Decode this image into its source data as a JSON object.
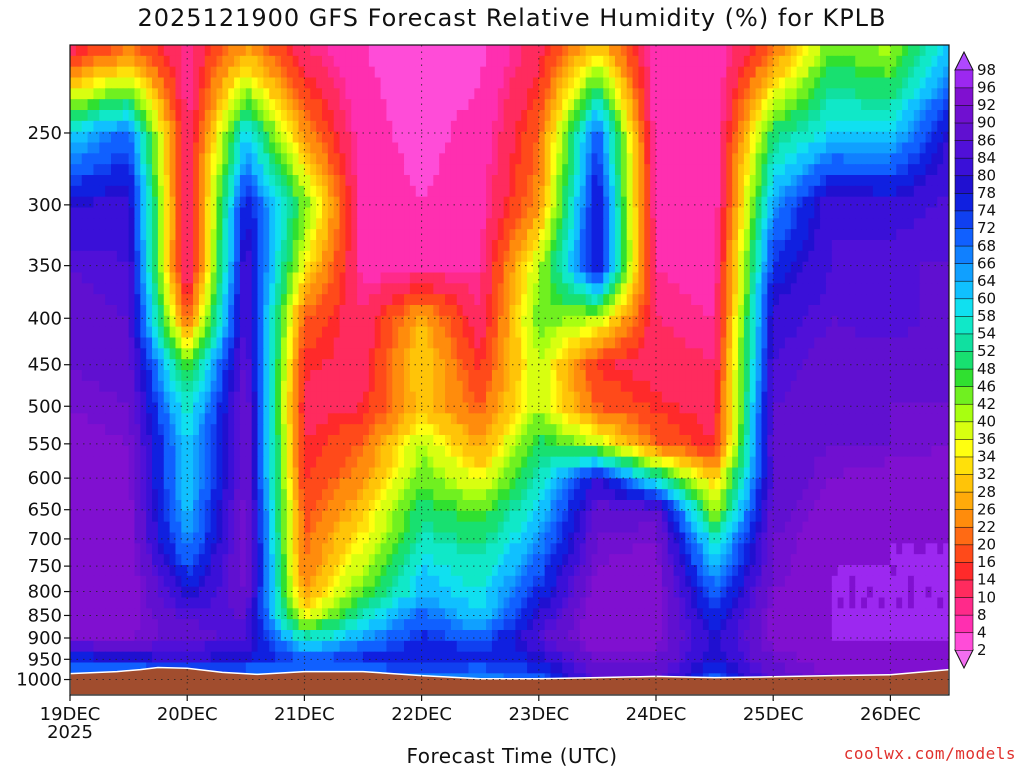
{
  "chart_data": {
    "type": "heatmap",
    "title": "2025121900 GFS Forecast Relative Humidity (%) for KPLB",
    "xlabel": "Forecast Time (UTC)",
    "ylabel": "",
    "x_ticks": [
      "19DEC",
      "20DEC",
      "21DEC",
      "22DEC",
      "23DEC",
      "24DEC",
      "25DEC",
      "26DEC"
    ],
    "x_year_label": "2025",
    "x_range_days": [
      0,
      7.5
    ],
    "y_ticks": [
      250,
      300,
      350,
      400,
      450,
      500,
      550,
      600,
      650,
      700,
      750,
      800,
      850,
      900,
      950,
      1000
    ],
    "y_range_hpa": [
      200,
      1040
    ],
    "y_scale": "log",
    "grid": true,
    "colorbar": {
      "position": "right",
      "labels": [
        2,
        4,
        8,
        10,
        14,
        16,
        20,
        22,
        26,
        28,
        32,
        34,
        36,
        40,
        42,
        46,
        48,
        52,
        54,
        58,
        60,
        64,
        66,
        68,
        72,
        74,
        78,
        80,
        84,
        86,
        90,
        92,
        96,
        98
      ],
      "colors": [
        "#f26ef0",
        "#ff4cd8",
        "#ff2fb0",
        "#ff2a8a",
        "#ff2b5e",
        "#ff2a2a",
        "#ff4a1a",
        "#ff6a14",
        "#ff8c0c",
        "#ffaa0a",
        "#ffc408",
        "#ffe00a",
        "#ffff10",
        "#d8ff10",
        "#a8ff10",
        "#70f020",
        "#30e030",
        "#18e070",
        "#10e0a0",
        "#10e8c8",
        "#10e0f0",
        "#10c0ff",
        "#10a0ff",
        "#1080ff",
        "#1060ff",
        "#1040f0",
        "#1020e0",
        "#2010d0",
        "#3a10d8",
        "#5010d8",
        "#6010d0",
        "#7010d0",
        "#8010d0",
        "#9c28f0",
        "#b048ff"
      ]
    },
    "terrain_pressure_hpa": [
      [
        0,
        985
      ],
      [
        0.4,
        980
      ],
      [
        0.6,
        975
      ],
      [
        0.75,
        970
      ],
      [
        1.0,
        972
      ],
      [
        1.3,
        982
      ],
      [
        1.6,
        987
      ],
      [
        2.0,
        980
      ],
      [
        2.5,
        980
      ],
      [
        3.0,
        990
      ],
      [
        3.5,
        998
      ],
      [
        4.0,
        998
      ],
      [
        4.5,
        995
      ],
      [
        5.0,
        992
      ],
      [
        5.5,
        995
      ],
      [
        6.0,
        993
      ],
      [
        6.5,
        990
      ],
      [
        7.0,
        988
      ],
      [
        7.5,
        975
      ]
    ],
    "humidity_grid": {
      "x_days": [
        0,
        0.5,
        1.0,
        1.5,
        2.0,
        2.5,
        3.0,
        3.5,
        4.0,
        4.5,
        5.0,
        5.5,
        6.0,
        6.5,
        7.0,
        7.5
      ],
      "p_levels": [
        200,
        250,
        300,
        350,
        400,
        450,
        500,
        550,
        600,
        650,
        700,
        750,
        800,
        850,
        900,
        950,
        1000
      ],
      "values": [
        [
          10,
          20,
          8,
          25,
          10,
          4,
          3,
          3,
          12,
          30,
          5,
          4,
          20,
          45,
          40,
          60
        ],
        [
          60,
          70,
          8,
          60,
          25,
          5,
          3,
          5,
          20,
          72,
          5,
          4,
          50,
          60,
          60,
          80
        ],
        [
          80,
          82,
          8,
          78,
          45,
          6,
          4,
          6,
          25,
          80,
          6,
          5,
          65,
          84,
          82,
          85
        ],
        [
          86,
          84,
          6,
          84,
          35,
          6,
          6,
          8,
          40,
          80,
          8,
          6,
          75,
          84,
          86,
          86
        ],
        [
          88,
          86,
          20,
          86,
          20,
          10,
          28,
          10,
          45,
          40,
          10,
          8,
          82,
          86,
          84,
          88
        ],
        [
          90,
          88,
          45,
          88,
          15,
          12,
          32,
          15,
          40,
          15,
          12,
          10,
          84,
          88,
          88,
          90
        ],
        [
          92,
          90,
          55,
          90,
          12,
          14,
          30,
          20,
          40,
          20,
          15,
          12,
          86,
          88,
          90,
          90
        ],
        [
          94,
          92,
          60,
          90,
          14,
          20,
          40,
          26,
          50,
          40,
          20,
          14,
          88,
          90,
          90,
          92
        ],
        [
          95,
          92,
          60,
          90,
          15,
          25,
          45,
          35,
          55,
          80,
          55,
          30,
          86,
          92,
          94,
          94
        ],
        [
          96,
          94,
          62,
          92,
          18,
          30,
          50,
          45,
          60,
          88,
          88,
          40,
          88,
          94,
          95,
          95
        ],
        [
          96,
          94,
          65,
          92,
          20,
          35,
          55,
          50,
          65,
          90,
          92,
          55,
          90,
          95,
          96,
          96
        ],
        [
          96,
          95,
          72,
          92,
          22,
          40,
          60,
          55,
          70,
          92,
          94,
          62,
          90,
          96,
          96,
          96
        ],
        [
          96,
          95,
          78,
          90,
          25,
          45,
          62,
          58,
          75,
          94,
          94,
          70,
          92,
          96,
          96,
          96
        ],
        [
          94,
          94,
          85,
          86,
          35,
          55,
          70,
          60,
          80,
          96,
          94,
          75,
          94,
          96,
          96,
          96
        ],
        [
          92,
          92,
          88,
          84,
          55,
          65,
          75,
          70,
          85,
          96,
          94,
          78,
          94,
          96,
          96,
          96
        ],
        [
          75,
          78,
          80,
          78,
          72,
          75,
          78,
          76,
          78,
          90,
          90,
          78,
          90,
          94,
          94,
          94
        ],
        [
          60,
          62,
          65,
          64,
          65,
          66,
          66,
          66,
          70,
          88,
          88,
          70,
          88,
          92,
          92,
          92
        ]
      ]
    }
  },
  "credit": "coolwx.com/models"
}
